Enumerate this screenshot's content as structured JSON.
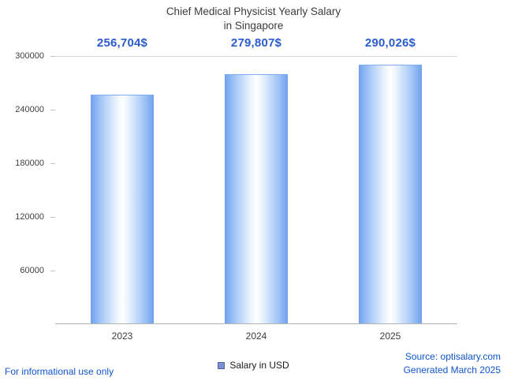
{
  "title": {
    "line1": "Chief Medical Physicist Yearly Salary",
    "line2": "in Singapore"
  },
  "chart_data": {
    "type": "bar",
    "title": "Chief Medical Physicist Yearly Salary in Singapore",
    "categories": [
      "2023",
      "2024",
      "2025"
    ],
    "values": [
      256704,
      279807,
      290026
    ],
    "value_labels": [
      "256,704$",
      "279,807$",
      "290,026$"
    ],
    "series_name": "Salary in USD",
    "xlabel": "",
    "ylabel": "",
    "ylim": [
      0,
      300000
    ],
    "yticks": [
      60000,
      120000,
      180000,
      240000,
      300000
    ],
    "grid": false,
    "legend_position": "bottom",
    "bar_gradient": [
      "#6fa1ee",
      "#ffffff",
      "#6fa1ee"
    ],
    "value_label_color": "#2a5ccc"
  },
  "legend": {
    "salary_label": "Salary in USD",
    "swatch_color": "#7b8fd4"
  },
  "footer": {
    "left": "For informational use only",
    "source": "Source: optisalary.com",
    "generated": "Generated March 2025",
    "link_color": "#1155cc"
  }
}
